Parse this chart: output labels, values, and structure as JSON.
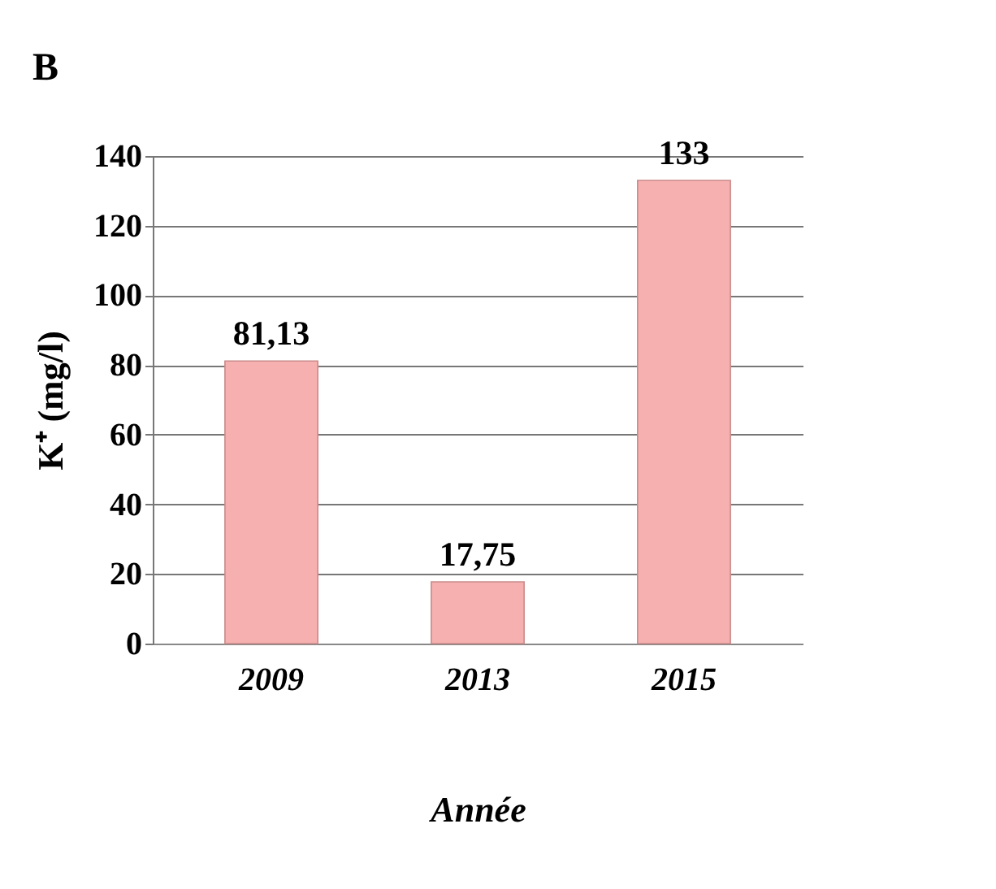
{
  "chart_data": {
    "type": "bar",
    "title": "B",
    "xlabel": "Année",
    "ylabel": "K⁺ (mg/l)",
    "categories": [
      "2009",
      "2013",
      "2015"
    ],
    "values": [
      81.13,
      17.75,
      133
    ],
    "value_labels": [
      "81,13",
      "17,75",
      "133"
    ],
    "color": "#f7b0b0",
    "ylim": [
      0,
      140
    ],
    "yticks": [
      0,
      20,
      40,
      60,
      80,
      100,
      120,
      140
    ],
    "grid": "y"
  }
}
